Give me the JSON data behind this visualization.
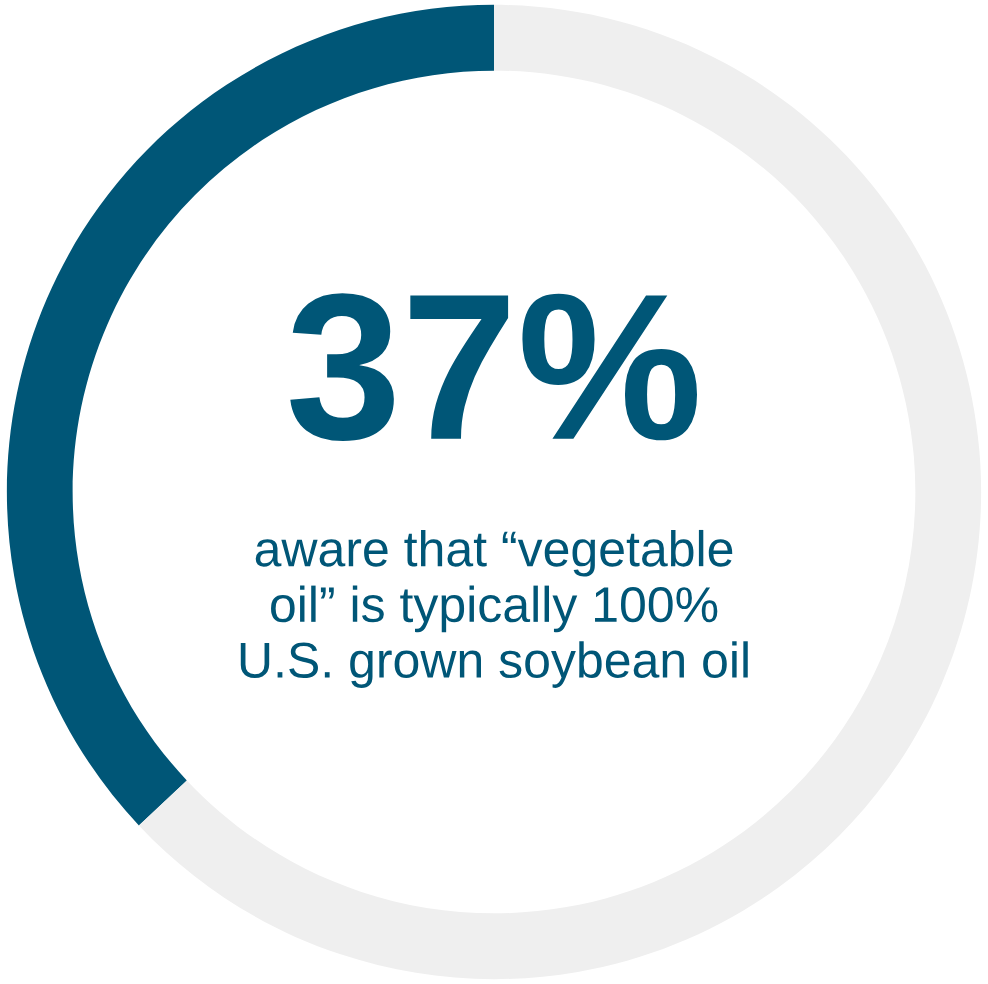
{
  "chart_data": {
    "type": "donut",
    "categories": [
      null,
      null
    ],
    "values": [
      37,
      63
    ],
    "colors": [
      "#005677",
      "#efefef"
    ],
    "annotations": [
      "37%",
      "aware that “vegetable\noil” is typically 100%\nU.S. grown soybean oil"
    ]
  }
}
